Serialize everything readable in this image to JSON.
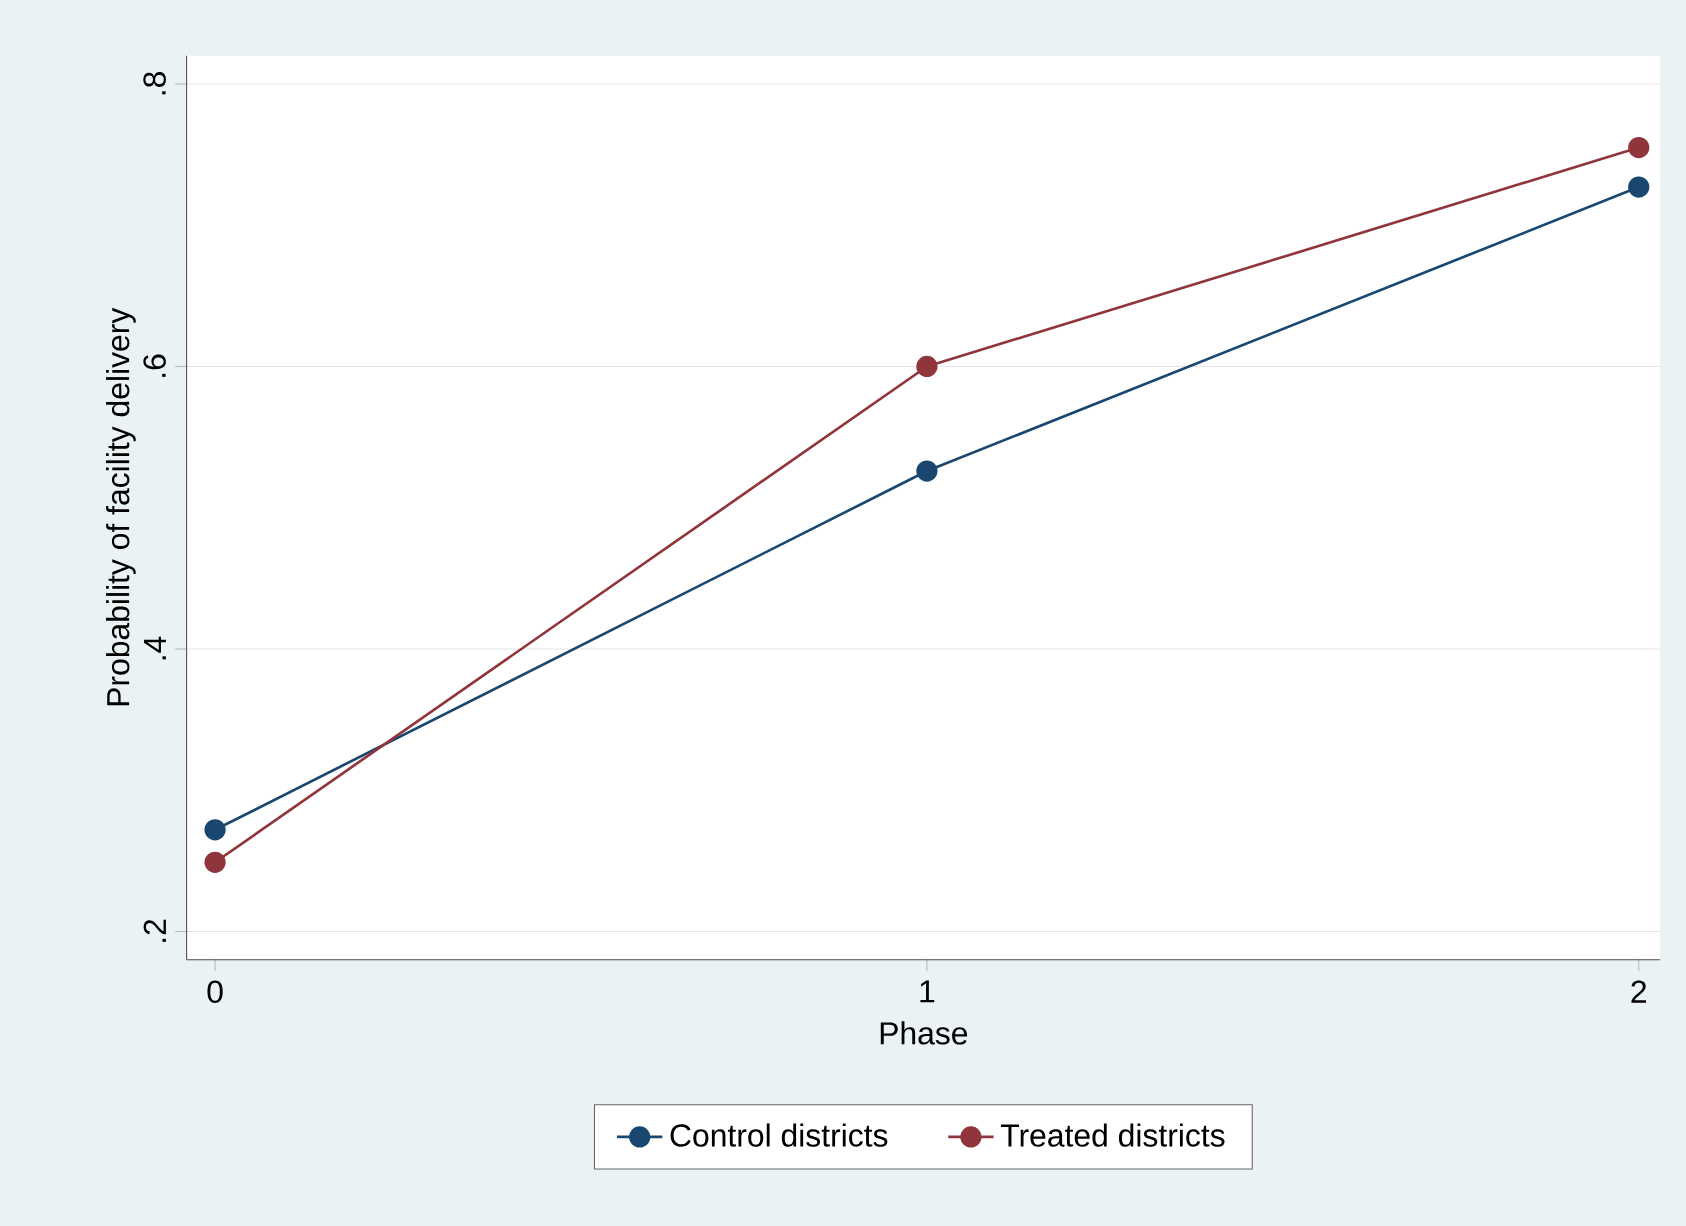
{
  "chart_data": {
    "type": "line",
    "xlabel": "Phase",
    "ylabel": "Probability of facility delivery",
    "x": [
      0,
      1,
      2
    ],
    "series": [
      {
        "name": "Control districts",
        "color": "#1a476f",
        "values": [
          0.272,
          0.526,
          0.727
        ]
      },
      {
        "name": "Treated districts",
        "color": "#90353b",
        "values": [
          0.249,
          0.6,
          0.755
        ]
      }
    ],
    "xlim": [
      -0.04,
      2.03
    ],
    "ylim": [
      0.18,
      0.82
    ],
    "xticks": [
      0,
      1,
      2
    ],
    "yticks": [
      {
        "value": 0.2,
        "label": ".2"
      },
      {
        "value": 0.4,
        "label": ".4"
      },
      {
        "value": 0.6,
        "label": ".6"
      },
      {
        "value": 0.8,
        "label": ".8"
      }
    ],
    "grid": "y",
    "legend": "bottom",
    "marker": "circle",
    "line_style": "solid"
  }
}
